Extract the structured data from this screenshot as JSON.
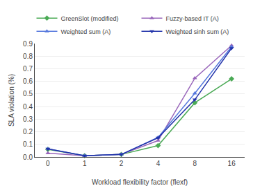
{
  "chart_data": {
    "type": "line",
    "categories": [
      "0",
      "1",
      "2",
      "4",
      "8",
      "16"
    ],
    "series": [
      {
        "name": "GreenSlot (modified)",
        "color": "#4aaa55",
        "marker": "diamond",
        "values": [
          0.06,
          0.01,
          0.02,
          0.09,
          0.43,
          0.62
        ]
      },
      {
        "name": "Fuzzy-based IT (A)",
        "color": "#9966bb",
        "marker": "triangle-up",
        "values": [
          0.03,
          0.01,
          0.02,
          0.13,
          0.625,
          0.885
        ]
      },
      {
        "name": "Weighted sum (A)",
        "color": "#5577dd",
        "marker": "triangle-up",
        "values": [
          0.065,
          0.01,
          0.02,
          0.155,
          0.505,
          0.875
        ]
      },
      {
        "name": "Weighted sinh sum (A)",
        "color": "#2233aa",
        "marker": "triangle-down",
        "values": [
          0.065,
          0.01,
          0.02,
          0.152,
          0.455,
          0.863
        ]
      }
    ],
    "xlabel": "Workload flexibility factor (flexf)",
    "ylabel": "SLA violation (%)",
    "ylim": [
      0.0,
      0.9
    ],
    "yticks": [
      {
        "value": 0.0,
        "label": "0.0"
      },
      0.1,
      0.2,
      0.3,
      0.4,
      0.5,
      0.6,
      0.7,
      0.8,
      0.9
    ],
    "grid": true,
    "legend": "top"
  }
}
